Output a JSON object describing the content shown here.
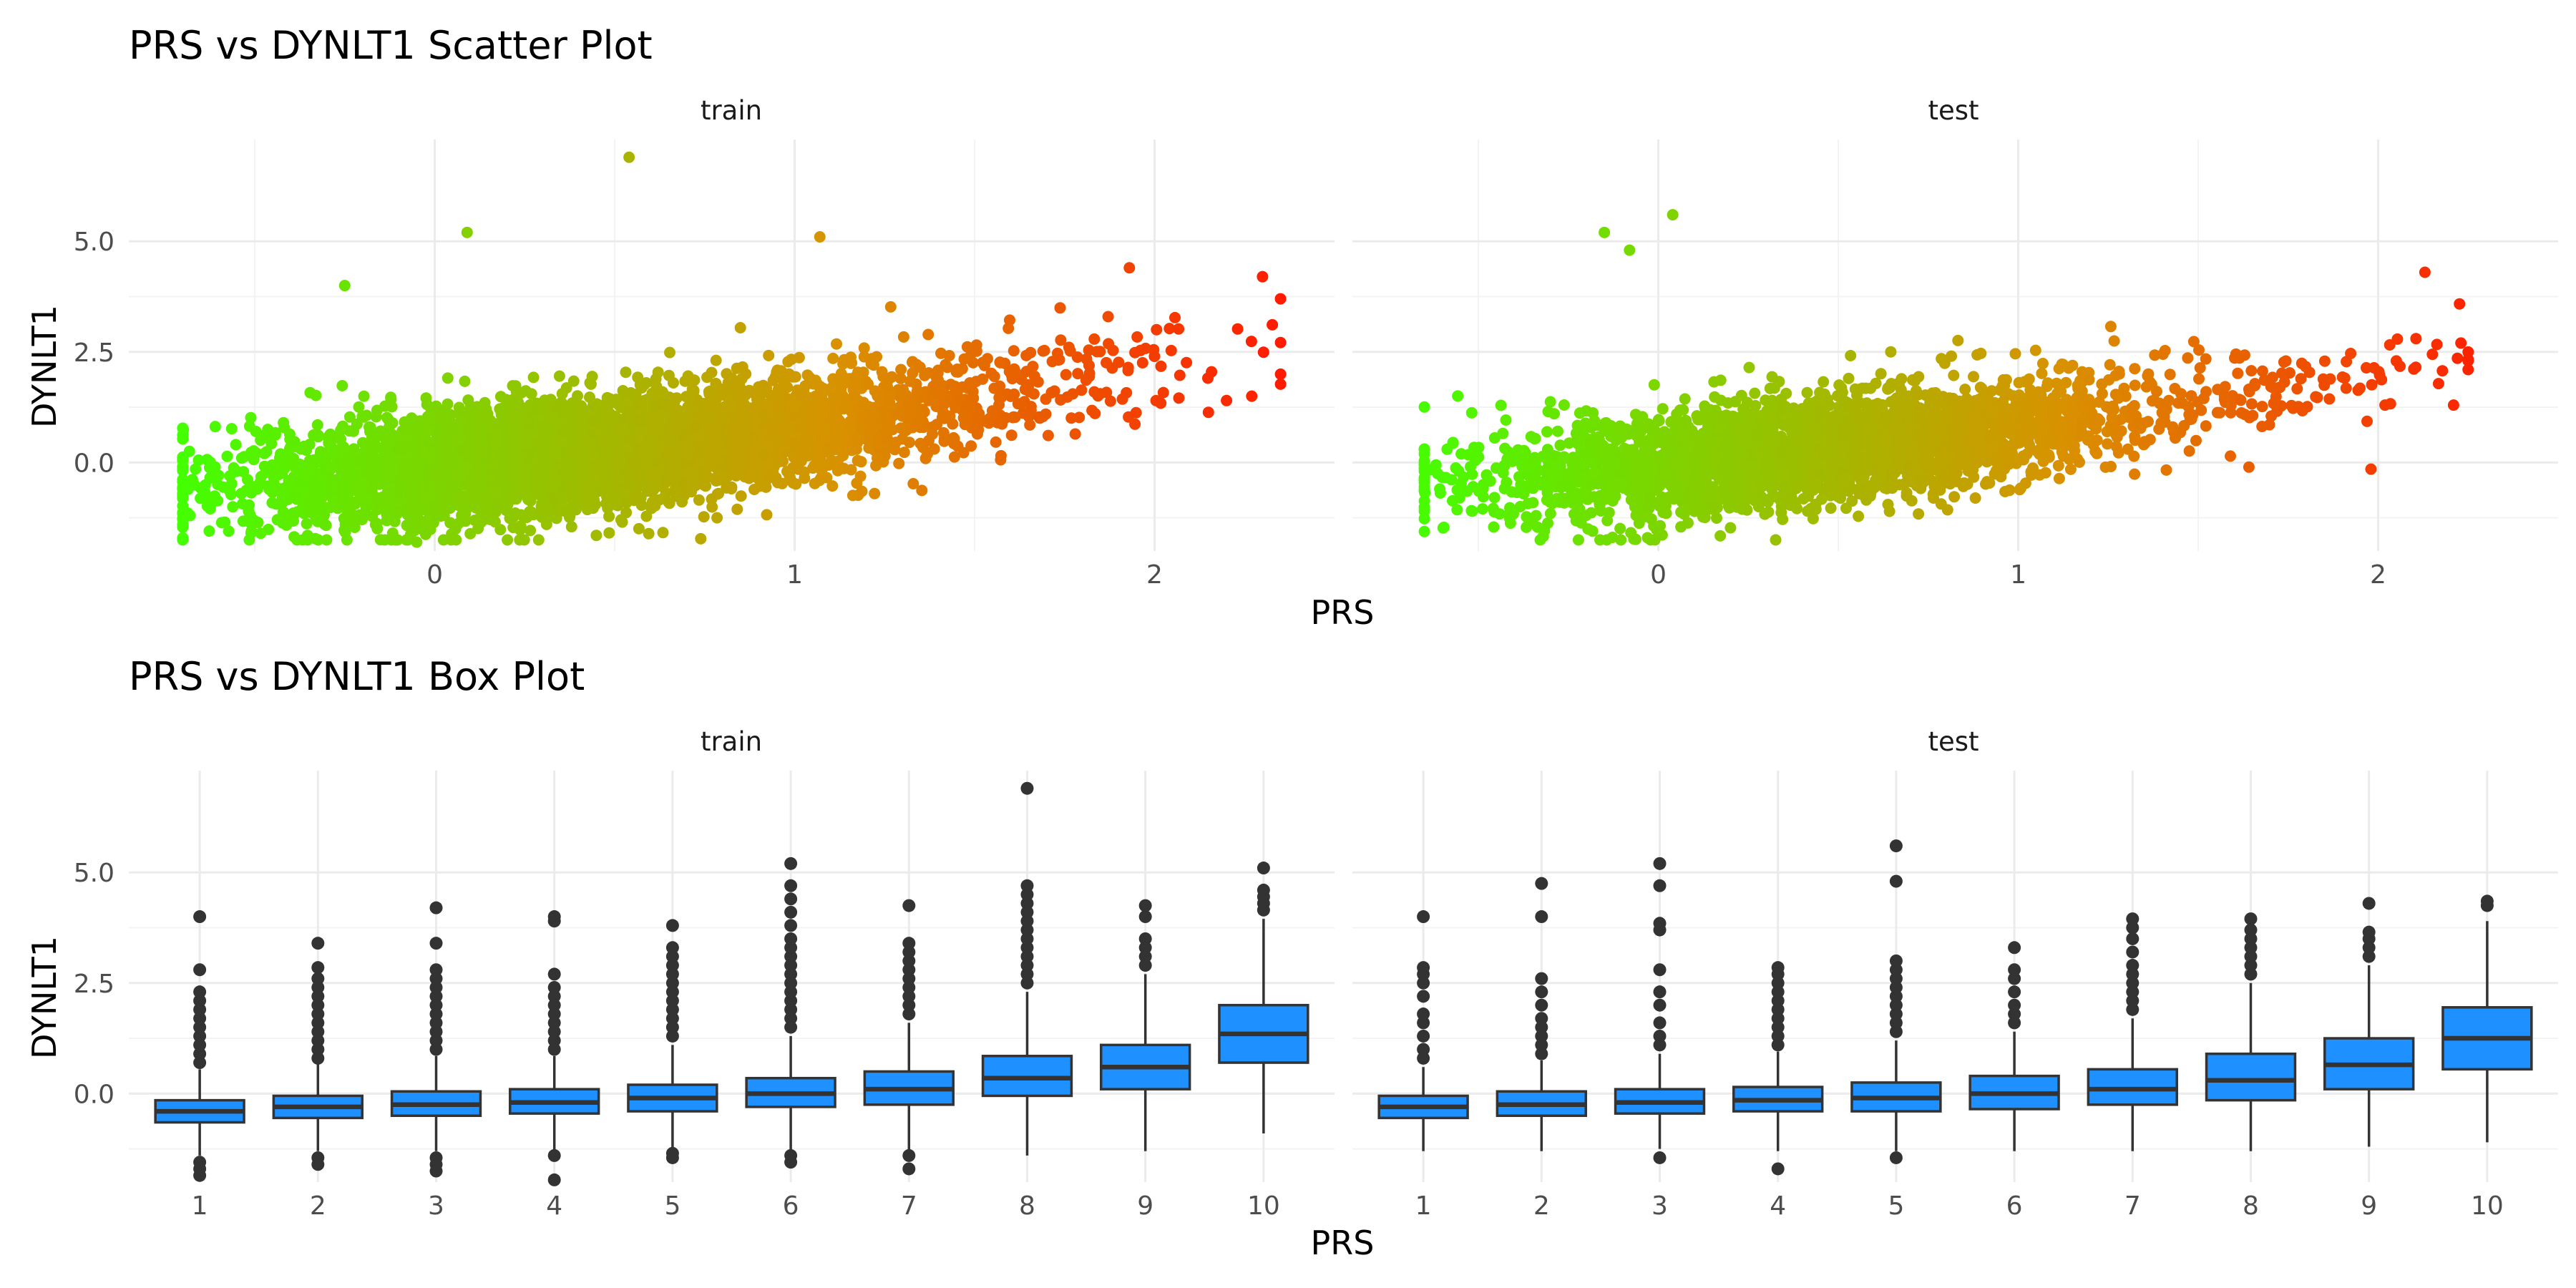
{
  "chart_data": [
    {
      "type": "scatter",
      "title": "PRS vs DYNLT1 Scatter Plot",
      "xlabel": "PRS",
      "ylabel": "DYNLT1",
      "facets": [
        "train",
        "test"
      ],
      "xlim": [
        -0.85,
        2.5
      ],
      "ylim": [
        -2.0,
        7.3
      ],
      "x_ticks": [
        0,
        1,
        2
      ],
      "y_ticks": [
        0.0,
        2.5,
        5.0
      ],
      "x_tick_labels": [
        "0",
        "1",
        "2"
      ],
      "y_tick_labels": [
        "0.0",
        "2.5",
        "5.0"
      ],
      "color_scale": {
        "low": "#44ff00",
        "mid": "#d99100",
        "high": "#ff1a00",
        "mapped_to": "PRS"
      },
      "panels": [
        {
          "facet": "train",
          "n_points_approx": 5000,
          "x_range": [
            -0.7,
            2.35
          ],
          "mean_trend": {
            "x": [
              -0.5,
              0,
              0.5,
              1,
              1.5,
              2
            ],
            "y": [
              -0.45,
              -0.1,
              0.3,
              0.75,
              1.5,
              2.1
            ]
          },
          "notable_points": [
            {
              "x": 0.54,
              "y": 6.9
            },
            {
              "x": 0.09,
              "y": 5.2
            },
            {
              "x": 1.07,
              "y": 5.1
            },
            {
              "x": 2.35,
              "y": 3.7
            },
            {
              "x": 1.93,
              "y": 4.4
            },
            {
              "x": 2.3,
              "y": 4.2
            },
            {
              "x": -0.68,
              "y": -1.2
            },
            {
              "x": -0.05,
              "y": -1.8
            },
            {
              "x": -0.25,
              "y": 4.0
            },
            {
              "x": 2.27,
              "y": 1.5
            },
            {
              "x": 2.2,
              "y": 1.4
            }
          ]
        },
        {
          "facet": "test",
          "n_points_approx": 3000,
          "x_range": [
            -0.65,
            2.25
          ],
          "mean_trend": {
            "x": [
              -0.5,
              0,
              0.5,
              1,
              1.5,
              2
            ],
            "y": [
              -0.45,
              -0.1,
              0.3,
              0.75,
              1.4,
              2.0
            ]
          },
          "notable_points": [
            {
              "x": 0.04,
              "y": 5.6
            },
            {
              "x": -0.15,
              "y": 5.2
            },
            {
              "x": -0.08,
              "y": 4.8
            },
            {
              "x": 2.13,
              "y": 4.3
            },
            {
              "x": 2.23,
              "y": 2.7
            },
            {
              "x": 2.25,
              "y": 2.1
            },
            {
              "x": -0.65,
              "y": -0.4
            },
            {
              "x": -0.03,
              "y": -1.7
            },
            {
              "x": 1.98,
              "y": -0.15
            }
          ]
        }
      ]
    },
    {
      "type": "box",
      "title": "PRS vs DYNLT1 Box Plot",
      "xlabel": "PRS",
      "ylabel": "DYNLT1",
      "facets": [
        "train",
        "test"
      ],
      "categories": [
        "1",
        "2",
        "3",
        "4",
        "5",
        "6",
        "7",
        "8",
        "9",
        "10"
      ],
      "ylim": [
        -2.0,
        7.3
      ],
      "y_ticks": [
        0.0,
        2.5,
        5.0
      ],
      "y_tick_labels": [
        "0.0",
        "2.5",
        "5.0"
      ],
      "box_color": "#1e90ff",
      "panels": [
        {
          "facet": "train",
          "boxes": [
            {
              "q1": -0.65,
              "median": -0.4,
              "q3": -0.15,
              "whisker_low": -1.4,
              "whisker_high": 0.55,
              "outliers": [
                0.7,
                0.9,
                1.1,
                1.3,
                1.5,
                1.7,
                1.9,
                2.1,
                2.3,
                2.8,
                4.0,
                -1.55,
                -1.7,
                -1.85
              ]
            },
            {
              "q1": -0.55,
              "median": -0.3,
              "q3": -0.05,
              "whisker_low": -1.3,
              "whisker_high": 0.7,
              "outliers": [
                0.8,
                1.0,
                1.2,
                1.4,
                1.6,
                1.8,
                2.0,
                2.2,
                2.4,
                2.6,
                2.85,
                3.4,
                -1.45,
                -1.6
              ]
            },
            {
              "q1": -0.5,
              "median": -0.25,
              "q3": 0.05,
              "whisker_low": -1.3,
              "whisker_high": 0.85,
              "outliers": [
                1.0,
                1.2,
                1.4,
                1.6,
                1.8,
                2.0,
                2.2,
                2.4,
                2.6,
                2.8,
                3.4,
                4.2,
                -1.45,
                -1.6,
                -1.75
              ]
            },
            {
              "q1": -0.45,
              "median": -0.2,
              "q3": 0.1,
              "whisker_low": -1.3,
              "whisker_high": 0.85,
              "outliers": [
                1.0,
                1.2,
                1.4,
                1.6,
                1.8,
                2.0,
                2.2,
                2.4,
                2.7,
                3.9,
                4.0,
                -1.4,
                -1.95
              ]
            },
            {
              "q1": -0.4,
              "median": -0.1,
              "q3": 0.2,
              "whisker_low": -1.25,
              "whisker_high": 1.1,
              "outliers": [
                1.3,
                1.5,
                1.7,
                1.9,
                2.1,
                2.3,
                2.5,
                2.7,
                2.9,
                3.1,
                3.3,
                3.8,
                -1.35,
                -1.45
              ]
            },
            {
              "q1": -0.3,
              "median": 0.0,
              "q3": 0.35,
              "whisker_low": -1.3,
              "whisker_high": 1.3,
              "outliers": [
                1.5,
                1.7,
                1.9,
                2.1,
                2.3,
                2.5,
                2.7,
                2.9,
                3.1,
                3.3,
                3.5,
                3.8,
                4.1,
                4.4,
                4.7,
                5.2,
                -1.4,
                -1.55
              ]
            },
            {
              "q1": -0.25,
              "median": 0.1,
              "q3": 0.5,
              "whisker_low": -1.3,
              "whisker_high": 1.6,
              "outliers": [
                1.8,
                2.0,
                2.2,
                2.4,
                2.6,
                2.8,
                3.0,
                3.2,
                3.4,
                4.25,
                -1.4,
                -1.7
              ]
            },
            {
              "q1": -0.05,
              "median": 0.35,
              "q3": 0.85,
              "whisker_low": -1.4,
              "whisker_high": 2.3,
              "outliers": [
                2.5,
                2.7,
                2.9,
                3.1,
                3.3,
                3.5,
                3.7,
                3.9,
                4.1,
                4.3,
                4.5,
                4.7,
                6.9
              ]
            },
            {
              "q1": 0.1,
              "median": 0.6,
              "q3": 1.1,
              "whisker_low": -1.3,
              "whisker_high": 2.7,
              "outliers": [
                2.9,
                3.1,
                3.3,
                3.5,
                4.0,
                4.25
              ]
            },
            {
              "q1": 0.7,
              "median": 1.35,
              "q3": 2.0,
              "whisker_low": -0.9,
              "whisker_high": 3.95,
              "outliers": [
                4.15,
                4.3,
                4.45,
                4.6,
                5.1
              ]
            }
          ]
        },
        {
          "facet": "test",
          "boxes": [
            {
              "q1": -0.55,
              "median": -0.3,
              "q3": -0.05,
              "whisker_low": -1.3,
              "whisker_high": 0.6,
              "outliers": [
                0.8,
                1.0,
                1.3,
                1.6,
                1.8,
                2.2,
                2.5,
                2.7,
                2.85,
                4.0
              ]
            },
            {
              "q1": -0.5,
              "median": -0.25,
              "q3": 0.05,
              "whisker_low": -1.3,
              "whisker_high": 0.75,
              "outliers": [
                0.9,
                1.1,
                1.3,
                1.5,
                1.7,
                2.0,
                2.3,
                2.6,
                4.0,
                4.75
              ]
            },
            {
              "q1": -0.45,
              "median": -0.2,
              "q3": 0.1,
              "whisker_low": -1.25,
              "whisker_high": 0.9,
              "outliers": [
                1.1,
                1.3,
                1.6,
                2.0,
                2.3,
                2.8,
                3.7,
                3.85,
                4.7,
                5.2,
                -1.45
              ]
            },
            {
              "q1": -0.4,
              "median": -0.15,
              "q3": 0.15,
              "whisker_low": -1.3,
              "whisker_high": 0.95,
              "outliers": [
                1.1,
                1.3,
                1.5,
                1.7,
                1.9,
                2.1,
                2.3,
                2.5,
                2.7,
                2.85,
                -1.7
              ]
            },
            {
              "q1": -0.4,
              "median": -0.1,
              "q3": 0.25,
              "whisker_low": -1.3,
              "whisker_high": 1.2,
              "outliers": [
                1.4,
                1.6,
                1.8,
                2.0,
                2.2,
                2.4,
                2.6,
                2.8,
                3.0,
                4.8,
                5.6,
                -1.45
              ]
            },
            {
              "q1": -0.35,
              "median": 0.0,
              "q3": 0.4,
              "whisker_low": -1.3,
              "whisker_high": 1.4,
              "outliers": [
                1.6,
                1.8,
                2.0,
                2.3,
                2.6,
                2.8,
                3.3
              ]
            },
            {
              "q1": -0.25,
              "median": 0.1,
              "q3": 0.55,
              "whisker_low": -1.3,
              "whisker_high": 1.7,
              "outliers": [
                1.9,
                2.1,
                2.3,
                2.5,
                2.7,
                2.9,
                3.2,
                3.5,
                3.75,
                3.95
              ]
            },
            {
              "q1": -0.15,
              "median": 0.3,
              "q3": 0.9,
              "whisker_low": -1.3,
              "whisker_high": 2.5,
              "outliers": [
                2.7,
                2.9,
                3.1,
                3.3,
                3.5,
                3.7,
                3.95
              ]
            },
            {
              "q1": 0.1,
              "median": 0.65,
              "q3": 1.25,
              "whisker_low": -1.2,
              "whisker_high": 2.9,
              "outliers": [
                3.1,
                3.3,
                3.5,
                3.65,
                4.3
              ]
            },
            {
              "q1": 0.55,
              "median": 1.25,
              "q3": 1.95,
              "whisker_low": -1.1,
              "whisker_high": 3.9,
              "outliers": [
                4.25,
                4.35
              ]
            }
          ]
        }
      ]
    }
  ]
}
